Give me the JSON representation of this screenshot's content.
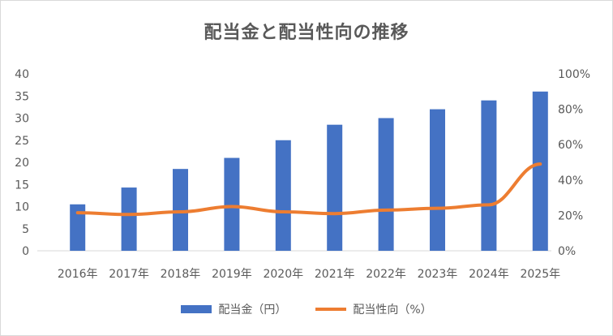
{
  "chart_data": {
    "type": "bar",
    "title": "配当金と配当性向の推移",
    "categories": [
      "2016年",
      "2017年",
      "2018年",
      "2019年",
      "2020年",
      "2021年",
      "2022年",
      "2023年",
      "2024年",
      "2025年"
    ],
    "series": [
      {
        "name": "配当金（円）",
        "type": "bar",
        "axis": "left",
        "color": "#4472c4",
        "values": [
          10.5,
          14.3,
          18.5,
          21,
          25,
          28.5,
          30,
          32,
          34,
          36
        ]
      },
      {
        "name": "配当性向（%）",
        "type": "line",
        "axis": "right",
        "color": "#ed7d31",
        "values": [
          21.5,
          20.5,
          22,
          25,
          22,
          21,
          23,
          24,
          26,
          49
        ]
      }
    ],
    "y_left": {
      "min": 0,
      "max": 40,
      "ticks": [
        "0",
        "5",
        "10",
        "15",
        "20",
        "25",
        "30",
        "35",
        "40"
      ]
    },
    "y_right": {
      "min": 0,
      "max": 100,
      "ticks": [
        "0%",
        "20%",
        "40%",
        "60%",
        "80%",
        "100%"
      ]
    },
    "legend_position": "bottom",
    "grid": false
  }
}
